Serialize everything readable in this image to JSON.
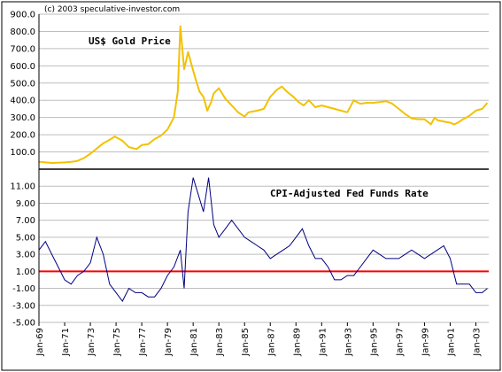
{
  "credit": "(c) 2003 speculative-investor.com",
  "chart_data": [
    {
      "type": "line",
      "title": "US$ Gold Price",
      "ylim": [
        0,
        900
      ],
      "yticks": [
        "900.0",
        "800.0",
        "700.0",
        "600.0",
        "500.0",
        "400.0",
        "300.0",
        "200.0",
        "100.0"
      ],
      "grid": true,
      "color": "#f2c200",
      "series": [
        {
          "x": [
            1969.0,
            1970.0,
            1971.0,
            1971.5,
            1972.0,
            1972.5,
            1973.0,
            1973.5,
            1974.0,
            1974.5,
            1974.9,
            1975.5,
            1976.0,
            1976.6,
            1977.0,
            1977.5,
            1978.0,
            1978.5,
            1979.0,
            1979.5,
            1979.8,
            1980.0,
            1980.3,
            1980.6,
            1980.9,
            1981.2,
            1981.5,
            1981.8,
            1982.1,
            1982.4,
            1982.6,
            1983.0,
            1983.5,
            1984.0,
            1984.5,
            1985.0,
            1985.3,
            1986.0,
            1986.5,
            1987.0,
            1987.5,
            1987.9,
            1988.3,
            1988.8,
            1989.2,
            1989.6,
            1990.0,
            1990.5,
            1991.0,
            1991.5,
            1992.0,
            1992.5,
            1993.0,
            1993.5,
            1994.0,
            1994.5,
            1995.0,
            1995.5,
            1996.0,
            1996.5,
            1997.0,
            1997.5,
            1998.0,
            1998.5,
            1999.0,
            1999.5,
            1999.8,
            2000.0,
            2000.3,
            2000.6,
            2001.0,
            2001.3,
            2001.6,
            2002.0,
            2002.5,
            2003.0,
            2003.5,
            2003.9
          ],
          "values": [
            43,
            36,
            39,
            42,
            48,
            65,
            90,
            120,
            150,
            170,
            190,
            165,
            128,
            117,
            140,
            145,
            175,
            195,
            230,
            300,
            450,
            830,
            580,
            680,
            600,
            520,
            450,
            420,
            340,
            390,
            440,
            470,
            410,
            370,
            330,
            305,
            330,
            340,
            350,
            420,
            460,
            480,
            450,
            420,
            390,
            370,
            400,
            360,
            370,
            360,
            350,
            340,
            330,
            400,
            380,
            385,
            385,
            390,
            395,
            380,
            350,
            320,
            295,
            290,
            290,
            260,
            300,
            285,
            280,
            275,
            270,
            260,
            270,
            290,
            310,
            340,
            350,
            385
          ]
        }
      ]
    },
    {
      "type": "line",
      "title": "CPI-Adjusted Fed Funds Rate",
      "ylim": [
        -5,
        13
      ],
      "yticks": [
        "11.00",
        "9.00",
        "7.00",
        "5.00",
        "3.00",
        "1.00",
        "-1.00",
        "-3.00",
        "-5.00"
      ],
      "grid": true,
      "color": "#000080",
      "reference_line": {
        "y": 1.0,
        "color": "#ff0000"
      },
      "series": [
        {
          "x": [
            1969.0,
            1969.5,
            1970.0,
            1970.5,
            1971.0,
            1971.5,
            1972.0,
            1972.5,
            1973.0,
            1973.5,
            1974.0,
            1974.5,
            1975.0,
            1975.5,
            1976.0,
            1976.5,
            1977.0,
            1977.5,
            1978.0,
            1978.5,
            1979.0,
            1979.5,
            1980.0,
            1980.3,
            1980.6,
            1981.0,
            1981.4,
            1981.8,
            1982.2,
            1982.6,
            1983.0,
            1983.5,
            1984.0,
            1984.5,
            1985.0,
            1985.5,
            1986.0,
            1986.5,
            1987.0,
            1987.5,
            1988.0,
            1988.5,
            1989.0,
            1989.5,
            1990.0,
            1990.5,
            1991.0,
            1991.5,
            1992.0,
            1992.5,
            1993.0,
            1993.5,
            1994.0,
            1994.5,
            1995.0,
            1995.5,
            1996.0,
            1996.5,
            1997.0,
            1997.5,
            1998.0,
            1998.5,
            1999.0,
            1999.5,
            2000.0,
            2000.5,
            2001.0,
            2001.5,
            2002.0,
            2002.5,
            2003.0,
            2003.5,
            2003.9
          ],
          "values": [
            3.5,
            4.5,
            3.0,
            1.5,
            0.0,
            -0.5,
            0.5,
            1.0,
            2.0,
            5.0,
            3.0,
            -0.5,
            -1.5,
            -2.5,
            -1.0,
            -1.5,
            -1.5,
            -2.0,
            -2.0,
            -1.0,
            0.5,
            1.5,
            3.5,
            -1.0,
            8.0,
            12.0,
            10.0,
            8.0,
            12.0,
            6.5,
            5.0,
            6.0,
            7.0,
            6.0,
            5.0,
            4.5,
            4.0,
            3.5,
            2.5,
            3.0,
            3.5,
            4.0,
            5.0,
            6.0,
            4.0,
            2.5,
            2.5,
            1.5,
            0.0,
            0.0,
            0.5,
            0.5,
            1.5,
            2.5,
            3.5,
            3.0,
            2.5,
            2.5,
            2.5,
            3.0,
            3.5,
            3.0,
            2.5,
            3.0,
            3.5,
            4.0,
            2.5,
            -0.5,
            -0.5,
            -0.5,
            -1.5,
            -1.5,
            -1.0
          ]
        }
      ]
    }
  ],
  "x_axis": {
    "ticks": [
      "Jan-69",
      "Jan-71",
      "Jan-73",
      "Jan-75",
      "Jan-77",
      "Jan-79",
      "Jan-81",
      "Jan-83",
      "Jan-85",
      "Jan-87",
      "Jan-89",
      "Jan-91",
      "Jan-93",
      "Jan-95",
      "Jan-97",
      "Jan-99",
      "Jan-01",
      "Jan-03"
    ],
    "tick_years": [
      1969,
      1971,
      1973,
      1975,
      1977,
      1979,
      1981,
      1983,
      1985,
      1987,
      1989,
      1991,
      1993,
      1995,
      1997,
      1999,
      2001,
      2003
    ],
    "xlim": [
      1969,
      2004
    ]
  }
}
